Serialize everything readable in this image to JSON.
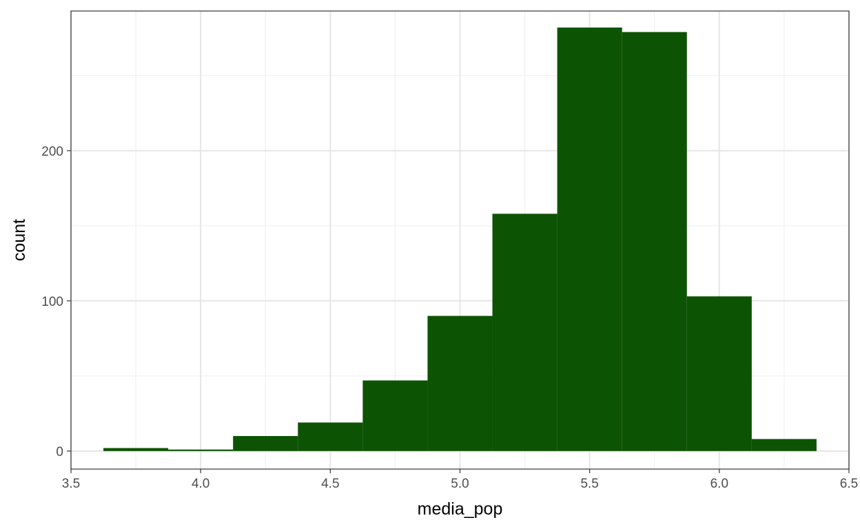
{
  "chart_data": {
    "type": "bar",
    "xlabel": "media_pop",
    "ylabel": "count",
    "xlim": [
      3.5,
      6.5
    ],
    "ylim": [
      -12,
      293
    ],
    "x_ticks": [
      3.5,
      4.0,
      4.5,
      5.0,
      5.5,
      6.0,
      6.5
    ],
    "x_tick_labels": [
      "3.5",
      "4.0",
      "4.5",
      "5.0",
      "5.5",
      "6.0",
      "6.5"
    ],
    "y_ticks": [
      0,
      100,
      200
    ],
    "y_tick_labels": [
      "0",
      "100",
      "200"
    ],
    "grid": true,
    "bins": [
      {
        "x0": 3.625,
        "x1": 3.875,
        "count": 2
      },
      {
        "x0": 3.875,
        "x1": 4.125,
        "count": 1
      },
      {
        "x0": 4.125,
        "x1": 4.375,
        "count": 10
      },
      {
        "x0": 4.375,
        "x1": 4.625,
        "count": 19
      },
      {
        "x0": 4.625,
        "x1": 4.875,
        "count": 47
      },
      {
        "x0": 4.875,
        "x1": 5.125,
        "count": 90
      },
      {
        "x0": 5.125,
        "x1": 5.375,
        "count": 158
      },
      {
        "x0": 5.375,
        "x1": 5.625,
        "count": 282
      },
      {
        "x0": 5.625,
        "x1": 5.875,
        "count": 279
      },
      {
        "x0": 5.875,
        "x1": 6.125,
        "count": 103
      },
      {
        "x0": 6.125,
        "x1": 6.375,
        "count": 8
      }
    ],
    "colors": {
      "bar": "#0d5304",
      "panel_border": "#333333",
      "grid_major": "#e5e5e5",
      "grid_minor": "#f0f0f0",
      "tick_text": "#4d4d4d"
    }
  }
}
